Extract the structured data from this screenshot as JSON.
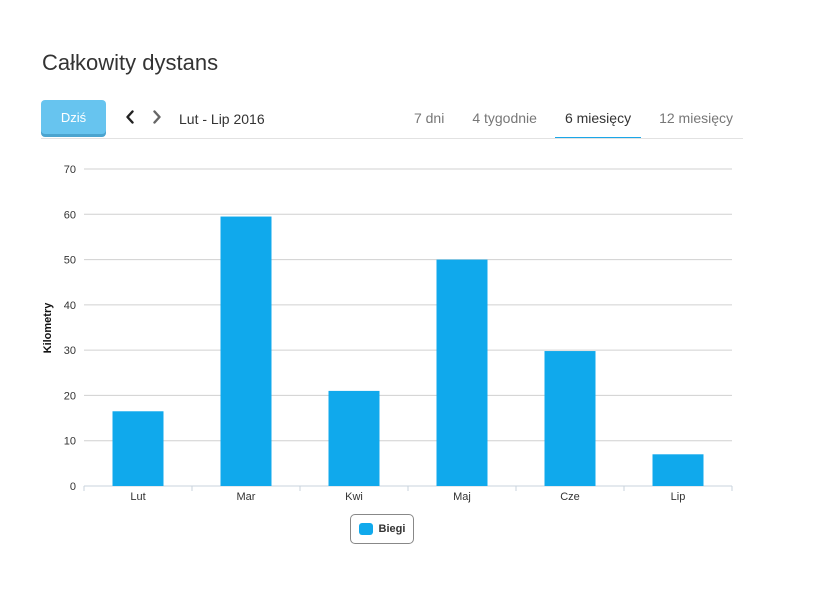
{
  "page": {
    "title": "Całkowity dystans"
  },
  "toolbar": {
    "today_label": "Dziś",
    "range_label": "Lut - Lip 2016",
    "prev_icon": "chevron-left-icon",
    "next_icon": "chevron-right-icon",
    "tabs": [
      {
        "label": "7 dni",
        "active": false
      },
      {
        "label": "4 tygodnie",
        "active": false
      },
      {
        "label": "6 miesięcy",
        "active": true
      },
      {
        "label": "12 miesięcy",
        "active": false
      }
    ]
  },
  "colors": {
    "bar": "#10a9ec",
    "accent": "#1ba7e8",
    "today_button": "#67c4ef"
  },
  "chart_data": {
    "type": "bar",
    "title": "",
    "xlabel": "",
    "ylabel": "Kilometry",
    "categories": [
      "Lut",
      "Mar",
      "Kwi",
      "Maj",
      "Cze",
      "Lip"
    ],
    "series": [
      {
        "name": "Biegi",
        "values": [
          16.5,
          59.5,
          21,
          50,
          29.8,
          7
        ]
      }
    ],
    "ylim": [
      0,
      70
    ],
    "yticks": [
      0,
      10,
      20,
      30,
      40,
      50,
      60,
      70
    ],
    "grid": true,
    "legend": "bottom-center"
  }
}
